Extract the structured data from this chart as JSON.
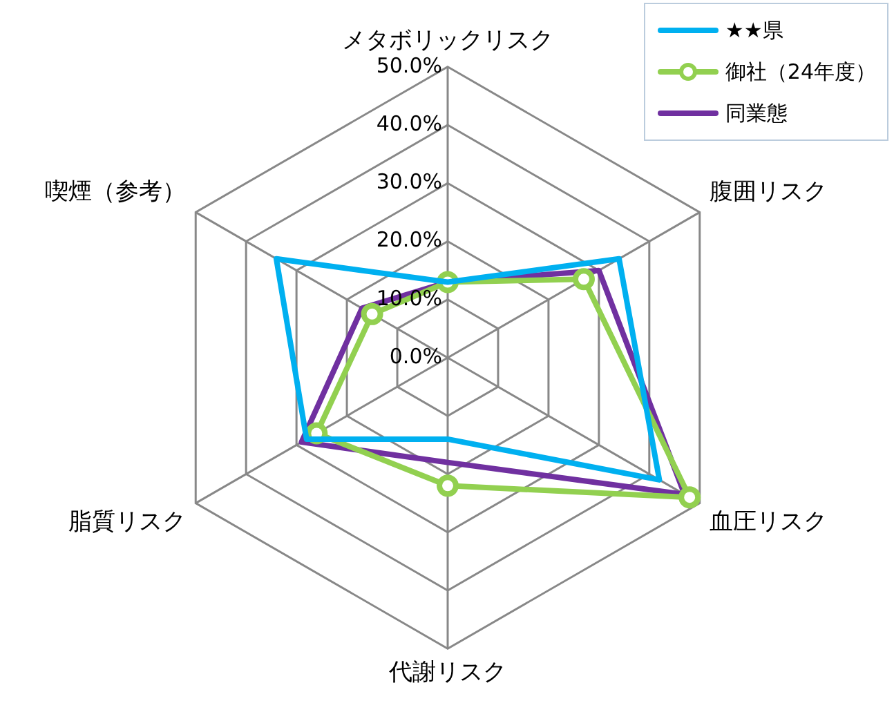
{
  "chart_data": {
    "type": "radar",
    "categories": [
      "メタボリックリスク",
      "腹囲リスク",
      "血圧リスク",
      "代謝リスク",
      "脂質リスク",
      "喫煙（参考）"
    ],
    "ylim": [
      0,
      50
    ],
    "yticks": [
      {
        "value": 0,
        "label": "0.0%"
      },
      {
        "value": 10,
        "label": "10.0%"
      },
      {
        "value": 20,
        "label": "20.0%"
      },
      {
        "value": 30,
        "label": "30.0%"
      },
      {
        "value": 40,
        "label": "40.0%"
      },
      {
        "value": 50,
        "label": "50.0%"
      }
    ],
    "grid": true,
    "legend": "top right",
    "series": [
      {
        "name": "★★県",
        "color": "#00b0f0",
        "marker": "none",
        "values": [
          13,
          34,
          42,
          14,
          28,
          34
        ]
      },
      {
        "name": "御社（24年度）",
        "color": "#92d050",
        "marker": "circle",
        "values": [
          13,
          27,
          48,
          22,
          26,
          15
        ]
      },
      {
        "name": "同業態",
        "color": "#7030a0",
        "marker": "none",
        "values": [
          13,
          30,
          47,
          18,
          29,
          17
        ]
      }
    ]
  }
}
